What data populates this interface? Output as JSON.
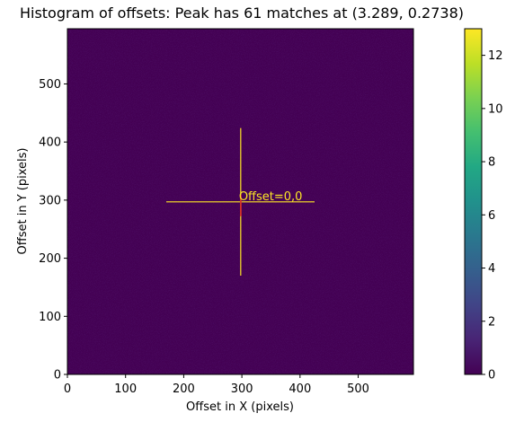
{
  "chart_data": {
    "type": "heatmap",
    "title": "Histogram of offsets: Peak has 61 matches at (3.289, 0.2738)",
    "xlabel": "Offset in X (pixels)",
    "ylabel": "Offset in Y (pixels)",
    "xlim": [
      0,
      595
    ],
    "ylim": [
      0,
      595
    ],
    "xticks": [
      0,
      100,
      200,
      300,
      400,
      500
    ],
    "yticks": [
      0,
      100,
      200,
      300,
      400,
      500
    ],
    "colormap": "viridis",
    "colorbar": {
      "range": [
        0,
        13
      ],
      "ticks": [
        0,
        2,
        4,
        6,
        8,
        10,
        12
      ]
    },
    "background_value": 0.3,
    "peak": {
      "x": 298,
      "y": 297,
      "label": "61 matches"
    },
    "crosshair": {
      "horizontal": {
        "x_from": 170,
        "x_to": 425,
        "y": 297
      },
      "vertical": {
        "x": 298,
        "y_from": 170,
        "y_to": 424
      },
      "color": "#fde725"
    },
    "annotation": {
      "text": "Offset=0,0",
      "x": 298,
      "y": 297,
      "color": "#fde725"
    },
    "grid": false
  }
}
